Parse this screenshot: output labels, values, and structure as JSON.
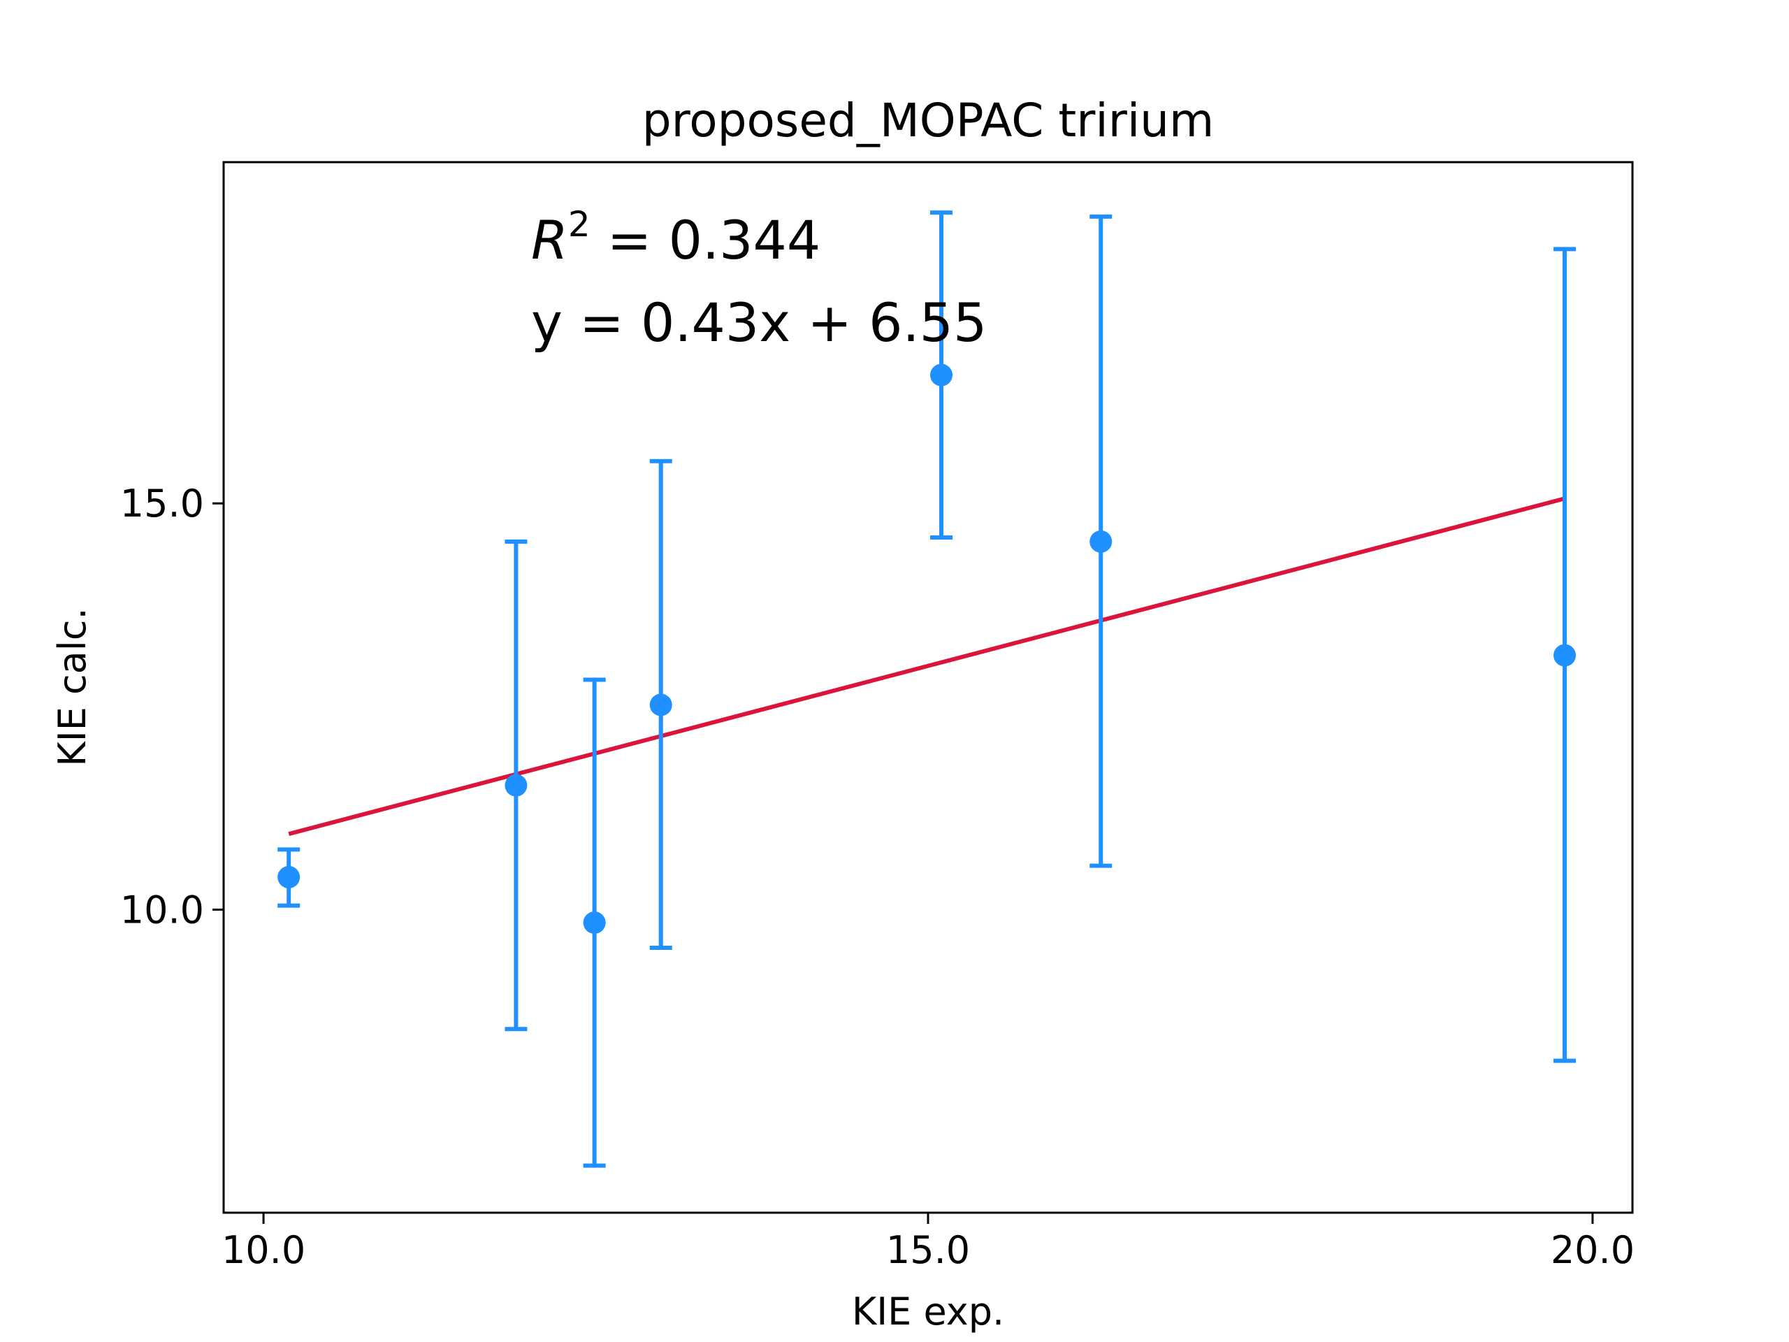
{
  "chart_data": {
    "type": "scatter",
    "title": "proposed_MOPAC tririum",
    "xlabel": "KIE exp.",
    "ylabel": "KIE calc.",
    "xlim": [
      9.7,
      20.3
    ],
    "ylim": [
      6.27,
      19.2
    ],
    "xticks": [
      10.0,
      15.0,
      20.0
    ],
    "xtick_labels": [
      "10.0",
      "15.0",
      "20.0"
    ],
    "yticks": [
      10.0,
      15.0
    ],
    "ytick_labels": [
      "10.0",
      "15.0"
    ],
    "grid": false,
    "series": [
      {
        "points": [
          {
            "x": 10.19,
            "y": 10.4,
            "yerr_low": 10.05,
            "yerr_high": 10.74
          },
          {
            "x": 11.9,
            "y": 11.53,
            "yerr_low": 8.53,
            "yerr_high": 14.53
          },
          {
            "x": 12.49,
            "y": 9.84,
            "yerr_low": 6.85,
            "yerr_high": 12.83
          },
          {
            "x": 12.99,
            "y": 12.52,
            "yerr_low": 9.53,
            "yerr_high": 15.52
          },
          {
            "x": 15.1,
            "y": 16.58,
            "yerr_low": 14.58,
            "yerr_high": 18.58
          },
          {
            "x": 16.3,
            "y": 14.53,
            "yerr_low": 10.54,
            "yerr_high": 18.53
          },
          {
            "x": 19.79,
            "y": 13.13,
            "yerr_low": 8.14,
            "yerr_high": 18.13
          }
        ],
        "color": "#1e90ff"
      },
      {
        "type": "line",
        "fit": {
          "slope": 0.43,
          "intercept": 6.55
        },
        "x_range": [
          10.19,
          19.79
        ],
        "color": "#dc143c"
      }
    ],
    "annotations": {
      "r2_prefix": "R",
      "r2_exponent": "2",
      "r2_value": " = 0.344",
      "equation": "y = 0.43x + 6.55"
    }
  }
}
